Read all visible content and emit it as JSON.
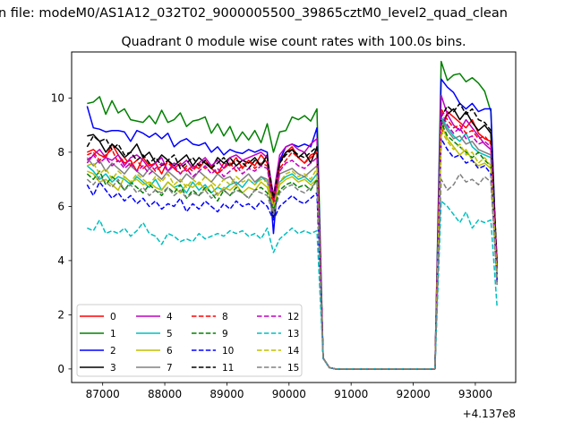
{
  "suptitle": "n file: modeM0/AS1A12_032T02_9000005500_39865cztM0_level2_quad_clean",
  "chart_data": {
    "type": "line",
    "title": "Quadrant 0 module wise count rates with 100.0s bins.",
    "xlabel": "",
    "ylabel": "",
    "x_offset_label": "+4.137e8",
    "xlim": [
      86500,
      93650
    ],
    "ylim": [
      -0.5,
      11.7
    ],
    "x_ticks": [
      87000,
      88000,
      89000,
      90000,
      91000,
      92000,
      93000
    ],
    "x_tick_labels": [
      "87000",
      "88000",
      "89000",
      "90000",
      "91000",
      "92000",
      "93000"
    ],
    "y_ticks": [
      0,
      2,
      4,
      6,
      8,
      10
    ],
    "y_tick_labels": [
      "0",
      "2",
      "4",
      "6",
      "8",
      "10"
    ],
    "grid": false,
    "legend_placement": "lower-left",
    "legend_columns": 4,
    "segments": [
      {
        "x_start": 86750,
        "x_end": 90450,
        "step": 100
      },
      {
        "x_start": 90550,
        "x_end": 90650,
        "step": 100,
        "value": "drop"
      },
      {
        "x_start": 90750,
        "x_end": 92350,
        "step": 100,
        "value": 0
      },
      {
        "x_start": 92450,
        "x_end": 93350,
        "step": 100
      }
    ],
    "series": [
      {
        "name": "0",
        "color": "#ff0000",
        "dash": "solid",
        "level1": [
          8.0,
          8.1,
          7.9,
          7.8,
          8.3,
          7.9,
          7.6,
          7.7,
          7.3,
          7.8,
          7.5,
          7.6,
          7.2,
          7.7,
          7.4,
          7.6,
          7.3,
          7.5,
          7.4,
          7.7,
          7.4,
          7.2,
          7.6,
          7.5,
          7.8,
          7.4,
          7.7,
          7.5,
          7.9,
          7.6,
          6.2,
          7.7,
          8.0,
          8.2,
          7.8,
          7.6,
          7.9,
          8.0
        ],
        "level2": [
          8.6,
          9.5,
          9.3,
          9.1,
          8.9,
          9.2,
          8.7,
          8.5,
          8.4,
          4.0
        ]
      },
      {
        "name": "1",
        "color": "#008000",
        "dash": "solid",
        "level1": [
          9.8,
          9.85,
          10.05,
          9.4,
          9.9,
          9.45,
          9.6,
          9.2,
          9.15,
          9.1,
          9.35,
          9.05,
          9.55,
          9.1,
          9.2,
          9.45,
          8.95,
          9.15,
          9.2,
          9.3,
          8.7,
          9.05,
          8.6,
          8.95,
          8.4,
          8.75,
          8.45,
          8.8,
          8.35,
          9.05,
          8.0,
          8.75,
          8.8,
          9.3,
          9.2,
          9.35,
          9.15,
          9.6
        ],
        "level2": [
          11.35,
          10.65,
          10.85,
          10.9,
          10.6,
          10.75,
          10.55,
          10.25,
          9.5,
          3.6
        ]
      },
      {
        "name": "2",
        "color": "#0000ff",
        "dash": "solid",
        "level1": [
          9.7,
          8.9,
          8.85,
          8.75,
          8.8,
          8.8,
          8.75,
          8.4,
          8.8,
          8.7,
          8.55,
          8.7,
          8.5,
          8.7,
          8.2,
          8.4,
          8.5,
          8.3,
          8.25,
          8.35,
          8.0,
          8.2,
          7.9,
          8.1,
          8.0,
          7.95,
          8.1,
          8.0,
          8.1,
          8.0,
          5.0,
          7.7,
          8.2,
          8.3,
          8.2,
          8.3,
          8.2,
          8.9
        ],
        "level2": [
          10.7,
          10.4,
          10.2,
          9.8,
          9.6,
          9.8,
          9.5,
          9.6,
          9.6,
          3.3
        ]
      },
      {
        "name": "3",
        "color": "#000000",
        "dash": "solid",
        "level1": [
          8.6,
          8.65,
          8.4,
          8.0,
          8.3,
          8.1,
          7.8,
          8.0,
          8.3,
          7.8,
          8.0,
          7.6,
          7.9,
          7.7,
          7.5,
          7.7,
          7.9,
          7.5,
          7.8,
          7.6,
          7.4,
          7.8,
          7.6,
          7.8,
          7.5,
          7.7,
          7.6,
          7.8,
          7.5,
          7.9,
          5.6,
          7.6,
          8.0,
          8.1,
          7.8,
          8.0,
          7.6,
          8.2
        ],
        "level2": [
          9.0,
          9.4,
          9.6,
          9.2,
          9.5,
          9.1,
          8.8,
          9.0,
          8.7,
          3.7
        ]
      },
      {
        "name": "4",
        "color": "#bf00bf",
        "dash": "solid",
        "level1": [
          7.6,
          7.9,
          8.1,
          7.8,
          7.7,
          7.9,
          7.5,
          7.8,
          7.9,
          7.7,
          7.4,
          7.6,
          7.8,
          7.3,
          7.6,
          7.5,
          7.7,
          7.4,
          7.6,
          7.8,
          7.5,
          7.7,
          7.4,
          7.8,
          7.9,
          7.7,
          7.8,
          7.9,
          8.0,
          7.8,
          6.4,
          7.9,
          8.2,
          8.3,
          8.1,
          8.0,
          8.3,
          8.5
        ],
        "level2": [
          10.1,
          9.4,
          9.0,
          8.8,
          9.2,
          8.9,
          8.6,
          8.3,
          8.1,
          3.9
        ]
      },
      {
        "name": "5",
        "color": "#00bfbf",
        "dash": "solid",
        "level1": [
          7.5,
          7.3,
          7.0,
          7.2,
          6.9,
          7.1,
          7.0,
          6.8,
          7.1,
          6.9,
          6.7,
          7.0,
          6.6,
          6.9,
          6.7,
          6.8,
          6.5,
          6.9,
          6.6,
          6.8,
          6.5,
          6.7,
          6.6,
          6.8,
          6.9,
          6.7,
          7.0,
          6.8,
          7.1,
          6.9,
          5.9,
          6.9,
          7.1,
          7.2,
          7.0,
          7.1,
          6.9,
          7.2
        ],
        "level2": [
          9.3,
          8.9,
          8.6,
          8.4,
          8.7,
          8.2,
          8.0,
          7.9,
          7.8,
          3.5
        ]
      },
      {
        "name": "6",
        "color": "#bfbf00",
        "dash": "solid",
        "level1": [
          7.3,
          7.2,
          6.9,
          7.0,
          6.8,
          6.6,
          7.1,
          6.9,
          7.0,
          6.8,
          6.9,
          6.7,
          6.6,
          6.9,
          6.7,
          6.5,
          6.8,
          6.7,
          6.9,
          6.6,
          6.8,
          6.4,
          6.7,
          6.6,
          6.8,
          6.5,
          6.7,
          6.6,
          6.9,
          6.7,
          5.9,
          6.8,
          7.0,
          7.1,
          6.9,
          7.0,
          6.8,
          7.0
        ],
        "level2": [
          9.0,
          8.5,
          8.2,
          7.9,
          8.1,
          7.7,
          7.5,
          7.6,
          7.4,
          3.4
        ]
      },
      {
        "name": "7",
        "color": "#808080",
        "dash": "solid",
        "level1": [
          7.8,
          7.5,
          7.7,
          7.3,
          7.6,
          7.4,
          7.2,
          7.5,
          7.3,
          7.1,
          7.4,
          7.2,
          7.0,
          7.3,
          7.1,
          6.9,
          7.2,
          7.0,
          7.3,
          7.1,
          6.9,
          7.2,
          7.0,
          7.1,
          6.8,
          7.0,
          7.2,
          6.9,
          7.1,
          7.0,
          5.8,
          7.2,
          7.3,
          7.4,
          7.2,
          7.1,
          7.3,
          7.5
        ],
        "level2": [
          9.2,
          8.8,
          8.5,
          8.6,
          8.3,
          8.4,
          8.1,
          8.0,
          7.9,
          3.6
        ]
      },
      {
        "name": "8",
        "color": "#ff0000",
        "dash": "dashed",
        "level1": [
          7.9,
          8.0,
          7.7,
          7.9,
          8.1,
          7.6,
          7.8,
          7.5,
          7.7,
          7.4,
          7.6,
          7.3,
          7.5,
          7.6,
          7.4,
          7.2,
          7.5,
          7.3,
          7.6,
          7.4,
          7.5,
          7.2,
          7.4,
          7.6,
          7.3,
          7.5,
          7.7,
          7.4,
          7.6,
          7.5,
          6.1,
          7.4,
          7.7,
          8.0,
          7.8,
          7.6,
          7.8,
          8.0
        ],
        "level2": [
          9.6,
          9.2,
          8.9,
          9.0,
          8.7,
          8.8,
          8.5,
          8.6,
          8.3,
          3.8
        ]
      },
      {
        "name": "9",
        "color": "#008000",
        "dash": "dashed",
        "level1": [
          7.2,
          7.0,
          7.3,
          6.8,
          7.1,
          6.9,
          6.6,
          6.9,
          6.7,
          6.5,
          6.8,
          6.6,
          6.4,
          6.7,
          6.5,
          6.8,
          6.3,
          6.6,
          6.4,
          6.7,
          6.5,
          6.2,
          6.6,
          6.4,
          6.7,
          6.5,
          6.3,
          6.6,
          6.7,
          6.5,
          5.9,
          6.6,
          6.8,
          6.9,
          6.7,
          6.8,
          6.6,
          7.0
        ],
        "level2": [
          9.1,
          8.6,
          8.4,
          8.2,
          8.0,
          7.8,
          8.0,
          7.7,
          7.5,
          3.5
        ]
      },
      {
        "name": "10",
        "color": "#0000ff",
        "dash": "dashed",
        "level1": [
          6.8,
          6.4,
          6.9,
          6.6,
          6.3,
          6.5,
          6.2,
          6.4,
          6.1,
          6.3,
          6.0,
          6.2,
          5.9,
          6.1,
          6.0,
          6.3,
          5.8,
          6.1,
          5.9,
          6.2,
          6.0,
          5.8,
          6.1,
          5.9,
          6.2,
          6.0,
          6.1,
          5.9,
          6.2,
          6.0,
          5.5,
          6.0,
          6.2,
          6.4,
          6.2,
          6.1,
          6.3,
          6.5
        ],
        "level2": [
          8.5,
          8.1,
          7.8,
          7.9,
          7.6,
          7.7,
          7.4,
          7.5,
          7.2,
          3.2
        ]
      },
      {
        "name": "11",
        "color": "#000000",
        "dash": "dashed",
        "level1": [
          8.2,
          8.6,
          8.4,
          8.5,
          8.1,
          8.3,
          7.9,
          8.0,
          7.7,
          7.9,
          7.6,
          7.8,
          7.5,
          7.7,
          7.9,
          7.4,
          7.6,
          7.8,
          7.5,
          7.7,
          7.4,
          7.6,
          7.8,
          7.5,
          7.7,
          7.6,
          7.4,
          7.7,
          7.5,
          7.8,
          6.3,
          7.6,
          7.9,
          8.1,
          7.9,
          7.8,
          8.0,
          8.2
        ],
        "level2": [
          9.3,
          9.7,
          9.5,
          9.8,
          9.4,
          9.6,
          9.2,
          9.1,
          8.8,
          3.9
        ]
      },
      {
        "name": "12",
        "color": "#bf00bf",
        "dash": "dashed",
        "level1": [
          7.7,
          7.9,
          7.6,
          7.8,
          7.5,
          7.7,
          7.4,
          7.6,
          7.3,
          7.5,
          7.2,
          7.4,
          7.6,
          7.3,
          7.5,
          7.2,
          7.4,
          7.1,
          7.3,
          7.5,
          7.2,
          7.4,
          7.1,
          7.3,
          7.5,
          7.2,
          7.4,
          7.3,
          7.5,
          7.4,
          6.0,
          7.3,
          7.6,
          7.7,
          7.5,
          7.4,
          7.6,
          7.8
        ],
        "level2": [
          9.5,
          9.0,
          8.7,
          8.9,
          8.5,
          8.6,
          8.3,
          8.4,
          8.2,
          3.7
        ]
      },
      {
        "name": "13",
        "color": "#00bfbf",
        "dash": "dashed",
        "level1": [
          5.2,
          5.1,
          5.5,
          5.0,
          5.1,
          5.0,
          5.2,
          4.9,
          5.1,
          5.4,
          5.0,
          4.9,
          4.6,
          5.0,
          4.9,
          4.7,
          4.8,
          4.7,
          5.0,
          4.8,
          4.9,
          5.0,
          4.9,
          5.1,
          5.0,
          5.1,
          4.9,
          5.0,
          4.8,
          5.2,
          4.3,
          4.8,
          5.0,
          5.2,
          5.0,
          5.1,
          5.0,
          5.1
        ],
        "level2": [
          6.2,
          6.0,
          5.7,
          5.4,
          5.8,
          5.2,
          5.5,
          5.4,
          5.5,
          2.3
        ]
      },
      {
        "name": "14",
        "color": "#bfbf00",
        "dash": "dashed",
        "level1": [
          7.5,
          7.6,
          7.2,
          7.4,
          7.0,
          7.3,
          7.1,
          6.9,
          7.2,
          7.0,
          6.8,
          7.1,
          6.9,
          7.2,
          6.8,
          7.0,
          6.7,
          7.0,
          6.8,
          7.1,
          6.9,
          6.7,
          7.0,
          6.8,
          7.1,
          6.9,
          7.0,
          6.8,
          7.0,
          6.9,
          6.0,
          6.9,
          7.2,
          7.3,
          7.1,
          7.2,
          7.0,
          7.4
        ],
        "level2": [
          8.8,
          8.4,
          8.1,
          8.3,
          7.9,
          8.0,
          7.6,
          7.8,
          7.5,
          3.4
        ]
      },
      {
        "name": "15",
        "color": "#808080",
        "dash": "dashed",
        "level1": [
          7.0,
          6.8,
          7.1,
          6.9,
          6.7,
          7.0,
          6.6,
          6.8,
          6.5,
          6.7,
          6.4,
          6.6,
          6.5,
          6.7,
          6.4,
          6.6,
          6.3,
          6.5,
          6.4,
          6.6,
          6.3,
          6.5,
          6.6,
          6.4,
          6.6,
          6.5,
          6.3,
          6.6,
          6.5,
          6.4,
          5.7,
          6.5,
          6.7,
          6.8,
          6.6,
          6.5,
          6.7,
          6.9
        ],
        "level2": [
          7.0,
          6.6,
          6.8,
          7.2,
          6.9,
          7.0,
          6.8,
          7.1,
          6.9,
          3.1
        ]
      }
    ]
  }
}
